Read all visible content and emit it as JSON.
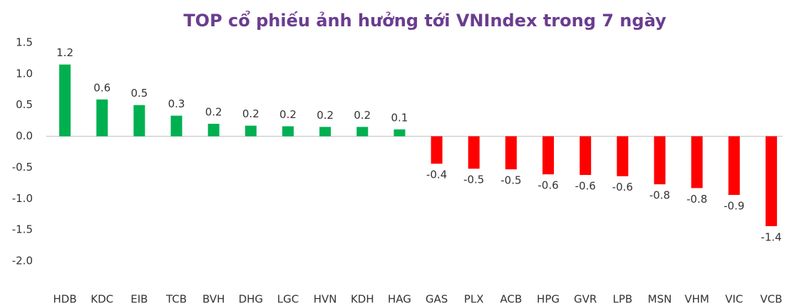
{
  "chart_data": {
    "type": "bar",
    "title": "TOP cổ phiếu ảnh hưởng tới VNIndex trong 7 ngày",
    "categories": [
      "HDB",
      "KDC",
      "EIB",
      "TCB",
      "BVH",
      "DHG",
      "LGC",
      "HVN",
      "KDH",
      "HAG",
      "GAS",
      "PLX",
      "ACB",
      "HPG",
      "GVR",
      "LPB",
      "MSN",
      "VHM",
      "VIC",
      "VCB"
    ],
    "values": [
      1.15,
      0.59,
      0.5,
      0.33,
      0.2,
      0.17,
      0.16,
      0.15,
      0.15,
      0.11,
      -0.44,
      -0.52,
      -0.53,
      -0.61,
      -0.62,
      -0.64,
      -0.77,
      -0.83,
      -0.94,
      -1.44
    ],
    "value_labels": [
      "1.2",
      "0.6",
      "0.5",
      "0.3",
      "0.2",
      "0.2",
      "0.2",
      "0.2",
      "0.2",
      "0.1",
      "-0.4",
      "-0.5",
      "-0.5",
      "-0.6",
      "-0.6",
      "-0.6",
      "-0.8",
      "-0.8",
      "-0.9",
      "-1.4"
    ],
    "color": "#00b050",
    "negative_color": "#ff0000",
    "ylim": [
      -2.0,
      1.5
    ],
    "yticks": [
      1.5,
      {
        "value": 1.0,
        "label": "1.0"
      },
      0.5,
      {
        "value": 0,
        "label": "0.0"
      },
      -0.5,
      {
        "value": -1.0,
        "label": "-1.0"
      },
      -1.5,
      {
        "value": -2.0,
        "label": "-2.0"
      }
    ],
    "grid": false
  }
}
